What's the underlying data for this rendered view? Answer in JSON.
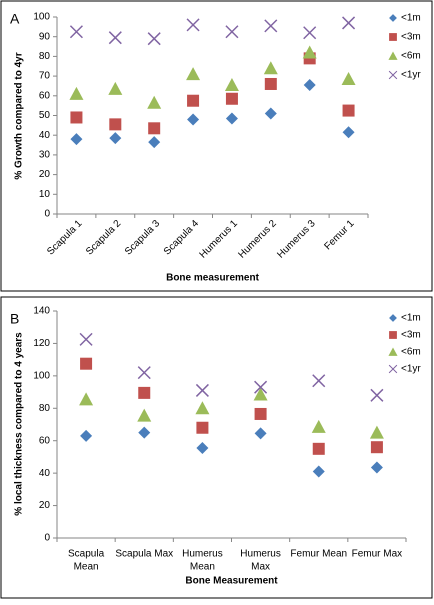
{
  "chart_data": [
    {
      "type": "scatter",
      "panel_label": "A",
      "y_label": "% Growth compared to 4yr",
      "x_label": "Bone measurement",
      "categories": [
        "Scapula 1",
        "Scapula 2",
        "Scapula 3",
        "Scapula 4",
        "Humerus 1",
        "Humerus 2",
        "Humerus 3",
        "Femur 1"
      ],
      "ylim": [
        0,
        100
      ],
      "yticks": [
        0,
        10,
        20,
        30,
        40,
        50,
        60,
        70,
        80,
        90,
        100
      ],
      "grid": false,
      "legend": "right",
      "series": [
        {
          "name": "<1m",
          "color": "#4a7ebb",
          "marker": "diamond",
          "values": [
            38,
            38.5,
            36.5,
            48,
            48.5,
            51,
            65.5,
            41.5
          ]
        },
        {
          "name": "<3m",
          "color": "#c0504d",
          "marker": "square",
          "values": [
            49,
            45.5,
            43.5,
            57.5,
            58.5,
            66,
            79,
            52.5
          ]
        },
        {
          "name": "<6m",
          "color": "#9bbb59",
          "marker": "triangle",
          "values": [
            61,
            63.5,
            56.5,
            71,
            65.5,
            74,
            82,
            68.5
          ]
        },
        {
          "name": "<1yr",
          "color": "#8064a2",
          "marker": "x",
          "values": [
            92.5,
            89.5,
            89,
            96,
            92.5,
            95.5,
            92,
            97
          ]
        }
      ]
    },
    {
      "type": "scatter",
      "panel_label": "B",
      "y_label": "% local thickness compared to 4 years",
      "x_label": "Bone Measurement",
      "categories": [
        [
          "Scapula",
          "Mean"
        ],
        [
          "Scapula Max"
        ],
        [
          "Humerus",
          "Mean"
        ],
        [
          "Humerus",
          "Max"
        ],
        [
          "Femur Mean"
        ],
        [
          "Femur Max"
        ]
      ],
      "ylim": [
        0,
        140
      ],
      "yticks": [
        0,
        20,
        40,
        60,
        80,
        100,
        120,
        140
      ],
      "grid": false,
      "legend": "right",
      "series": [
        {
          "name": "<1m",
          "color": "#4a7ebb",
          "marker": "diamond",
          "values": [
            63,
            65,
            55.5,
            64.5,
            41,
            43.5
          ]
        },
        {
          "name": "<3m",
          "color": "#c0504d",
          "marker": "square",
          "values": [
            107.5,
            89.5,
            68,
            76.5,
            55,
            56
          ]
        },
        {
          "name": "<6m",
          "color": "#9bbb59",
          "marker": "triangle",
          "values": [
            85.5,
            75.5,
            80,
            88.5,
            68.5,
            65
          ]
        },
        {
          "name": "<1yr",
          "color": "#8064a2",
          "marker": "x",
          "values": [
            122.5,
            102,
            91,
            93,
            97,
            88
          ]
        }
      ]
    }
  ]
}
